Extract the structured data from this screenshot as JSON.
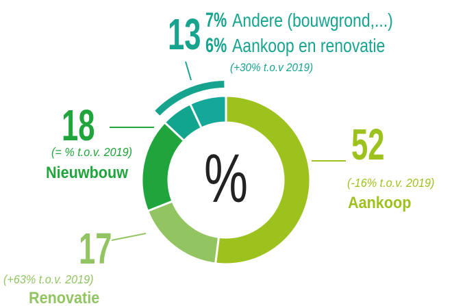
{
  "chart_data": {
    "type": "donut",
    "categories": [
      "Aankoop",
      "Renovatie",
      "Nieuwbouw",
      "Aankoop en renovatie",
      "Andere (bouwgrond,...)"
    ],
    "values": [
      52,
      17,
      18,
      6,
      7
    ],
    "value_labels": [
      "52",
      "17",
      "18",
      "6%",
      "7%"
    ],
    "colors": [
      "#9dc11d",
      "#93c462",
      "#1fa53b",
      "#12a58d",
      "#14a898"
    ],
    "annotations": [
      "(-16%  t.o.v. 2019)",
      "(+63% t.o.v. 2019)",
      "(= % t.o.v. 2019)"
    ],
    "center_label": "%",
    "group": {
      "value": 13,
      "value_label": "13",
      "annotation": "(+30% t.o.v 2019)",
      "color": "#17a48e"
    }
  }
}
